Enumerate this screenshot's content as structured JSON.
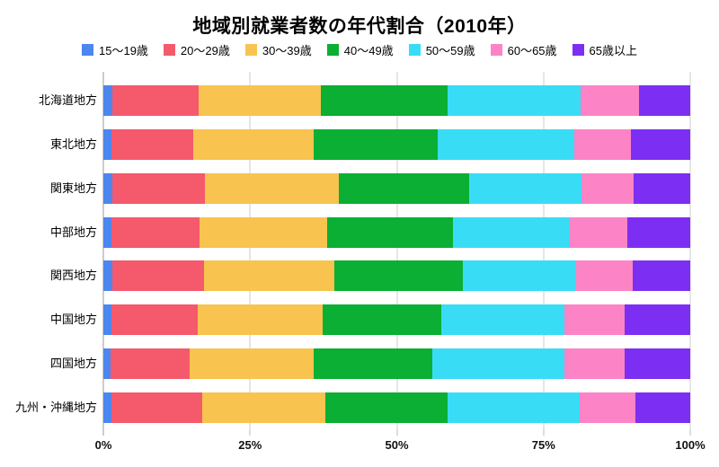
{
  "chart_data": {
    "type": "bar",
    "orientation": "horizontal",
    "stacked": true,
    "title": "地域別就業者数の年代割合（2010年）",
    "categories": [
      "北海道地方",
      "東北地方",
      "関東地方",
      "中部地方",
      "関西地方",
      "中国地方",
      "四国地方",
      "九州・沖縄地方"
    ],
    "series": [
      {
        "name": "15～19歳",
        "color": "#4C86EF",
        "values": [
          1.6,
          1.4,
          1.6,
          1.4,
          1.6,
          1.4,
          1.3,
          1.4
        ]
      },
      {
        "name": "20～29歳",
        "color": "#F5596C",
        "values": [
          14.6,
          13.9,
          15.7,
          15.0,
          15.5,
          14.7,
          13.4,
          15.4
        ]
      },
      {
        "name": "30～39歳",
        "color": "#F8C44F",
        "values": [
          20.8,
          20.6,
          22.9,
          21.8,
          22.2,
          21.3,
          21.2,
          21.1
        ]
      },
      {
        "name": "40～49歳",
        "color": "#0AAF33",
        "values": [
          21.7,
          21.0,
          22.1,
          21.3,
          21.9,
          20.2,
          20.2,
          20.7
        ]
      },
      {
        "name": "50～59歳",
        "color": "#39DCF5",
        "values": [
          22.6,
          23.4,
          19.1,
          20.0,
          19.4,
          21.0,
          22.4,
          22.6
        ]
      },
      {
        "name": "60～65歳",
        "color": "#FC83C6",
        "values": [
          10.0,
          9.6,
          9.0,
          9.8,
          9.6,
          10.3,
          10.3,
          9.4
        ]
      },
      {
        "name": "65歳以上",
        "color": "#7C2FF2",
        "values": [
          8.7,
          10.1,
          9.6,
          10.7,
          9.8,
          11.1,
          11.2,
          9.4
        ]
      }
    ],
    "x_ticks": [
      {
        "value": 0,
        "label": "0%"
      },
      {
        "value": 25,
        "label": "25%"
      },
      {
        "value": 50,
        "label": "50%"
      },
      {
        "value": 75,
        "label": "75%"
      },
      {
        "value": 100,
        "label": "100%"
      }
    ],
    "xlim": [
      0,
      100
    ],
    "grid": true,
    "grid_color": "#cccccc",
    "axis_color": "#999999",
    "legend_position": "top"
  }
}
